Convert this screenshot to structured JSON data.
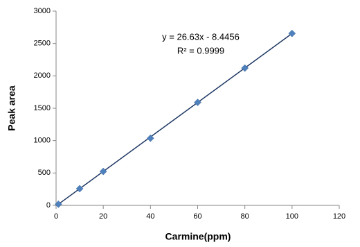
{
  "chart_data": {
    "type": "scatter",
    "x_label": "Carmine(ppm)",
    "y_label": "Peak area",
    "annotations": [
      "y = 26.63x - 8.4456",
      "R² = 0.9999"
    ],
    "x": [
      1,
      10,
      20,
      40,
      60,
      80,
      100
    ],
    "series": [
      {
        "color": "#4f81bd",
        "values": [
          18,
          258,
          524,
          1037,
          1590,
          2120,
          2655
        ]
      }
    ],
    "trendline": {
      "color": "#1f3864",
      "x": [
        1,
        100
      ],
      "values": [
        18,
        2654
      ]
    },
    "xlim": [
      0,
      120
    ],
    "xticks": [
      0,
      20,
      40,
      60,
      80,
      100,
      120
    ],
    "ylim": [
      0,
      3000
    ],
    "yticks": [
      0,
      500,
      1000,
      1500,
      2000,
      2500,
      3000
    ],
    "grid": false
  }
}
